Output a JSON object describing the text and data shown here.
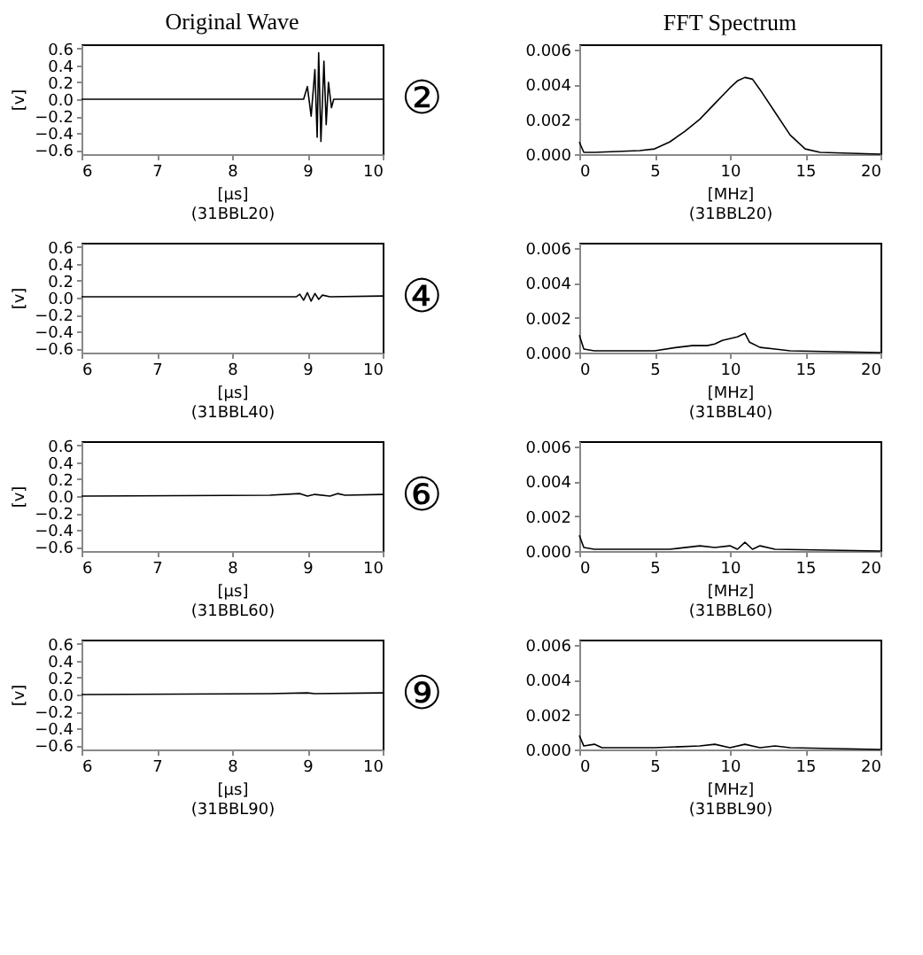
{
  "chart_data": [
    {
      "type": "line",
      "title": "Original Wave",
      "xlabel": "[μs]",
      "ylabel": "[v]",
      "annotations": [
        "(31BBL20)",
        "②"
      ],
      "xlim": [
        6,
        10
      ],
      "ylim": [
        -0.65,
        0.65
      ],
      "xticks": [
        6,
        7,
        8,
        9,
        10
      ],
      "yticks": [
        -0.6,
        -0.4,
        -0.2,
        {
          "value": 0,
          "label": "0.0"
        },
        0.2,
        0.4,
        0.6
      ],
      "grid": false,
      "legend": false,
      "line_style": "solid",
      "x": [
        6,
        8.95,
        9.0,
        9.05,
        9.1,
        9.13,
        9.15,
        9.18,
        9.22,
        9.25,
        9.28,
        9.32,
        9.35,
        10
      ],
      "series": [
        {
          "color": "#000000",
          "values": [
            0,
            0,
            0.15,
            -0.2,
            0.35,
            -0.45,
            0.55,
            -0.5,
            0.45,
            -0.3,
            0.2,
            -0.1,
            0,
            0
          ]
        }
      ]
    },
    {
      "type": "line",
      "title": "FFT Spectrum",
      "xlabel": "[MHz]",
      "annotations": [
        "(31BBL20)"
      ],
      "xlim": [
        0,
        20
      ],
      "ylim": [
        0,
        0.0063
      ],
      "xticks": [
        0,
        5,
        10,
        15,
        20
      ],
      "yticks": [
        {
          "value": 0,
          "label": "0.000"
        },
        {
          "value": 0.002,
          "label": "0.002"
        },
        {
          "value": 0.004,
          "label": "0.004"
        },
        {
          "value": 0.006,
          "label": "0.006"
        }
      ],
      "grid": false,
      "legend": false,
      "line_style": "solid",
      "x": [
        0,
        0.3,
        1,
        4,
        5,
        6,
        7,
        8,
        9,
        10,
        10.5,
        11,
        11.5,
        12,
        13,
        14,
        15,
        16,
        20
      ],
      "series": [
        {
          "color": "#000000",
          "values": [
            0.0007,
            0.0001,
            0.0001,
            0.0002,
            0.0003,
            0.0007,
            0.0013,
            0.002,
            0.0029,
            0.0038,
            0.0042,
            0.0044,
            0.0043,
            0.0037,
            0.0024,
            0.0011,
            0.0003,
            0.0001,
            0
          ]
        }
      ]
    },
    {
      "type": "line",
      "xlabel": "[μs]",
      "ylabel": "[v]",
      "annotations": [
        "(31BBL40)",
        "④"
      ],
      "xlim": [
        6,
        10
      ],
      "ylim": [
        -0.65,
        0.65
      ],
      "xticks": [
        6,
        7,
        8,
        9,
        10
      ],
      "yticks": [
        -0.6,
        -0.4,
        -0.2,
        {
          "value": 0,
          "label": "0.0"
        },
        0.2,
        0.4,
        0.6
      ],
      "grid": false,
      "legend": false,
      "line_style": "solid",
      "x": [
        6,
        8.85,
        8.9,
        8.95,
        9.0,
        9.05,
        9.1,
        9.15,
        9.2,
        9.3,
        10
      ],
      "series": [
        {
          "color": "#000000",
          "values": [
            0.01,
            0.01,
            0.04,
            -0.03,
            0.06,
            -0.04,
            0.05,
            -0.02,
            0.03,
            0.01,
            0.02
          ]
        }
      ]
    },
    {
      "type": "line",
      "xlabel": "[MHz]",
      "annotations": [
        "(31BBL40)"
      ],
      "xlim": [
        0,
        20
      ],
      "ylim": [
        0,
        0.0063
      ],
      "xticks": [
        0,
        5,
        10,
        15,
        20
      ],
      "yticks": [
        {
          "value": 0,
          "label": "0.000"
        },
        {
          "value": 0.002,
          "label": "0.002"
        },
        {
          "value": 0.004,
          "label": "0.004"
        },
        {
          "value": 0.006,
          "label": "0.006"
        }
      ],
      "grid": false,
      "legend": false,
      "line_style": "solid",
      "x": [
        0,
        0.3,
        1,
        5,
        6.5,
        7.5,
        8.5,
        9,
        9.5,
        10,
        10.5,
        11,
        11.3,
        12,
        13,
        14,
        20
      ],
      "series": [
        {
          "color": "#000000",
          "values": [
            0.001,
            0.0002,
            0.0001,
            0.0001,
            0.0003,
            0.0004,
            0.0004,
            0.0005,
            0.0007,
            0.0008,
            0.0009,
            0.0011,
            0.0006,
            0.0003,
            0.0002,
            0.0001,
            0
          ]
        }
      ]
    },
    {
      "type": "line",
      "xlabel": "[μs]",
      "ylabel": "[v]",
      "annotations": [
        "(31BBL60)",
        "⑥"
      ],
      "xlim": [
        6,
        10
      ],
      "ylim": [
        -0.65,
        0.65
      ],
      "xticks": [
        6,
        7,
        8,
        9,
        10
      ],
      "yticks": [
        -0.6,
        -0.4,
        -0.2,
        {
          "value": 0,
          "label": "0.0"
        },
        0.2,
        0.4,
        0.6
      ],
      "grid": false,
      "legend": false,
      "line_style": "solid",
      "x": [
        6,
        8.5,
        8.9,
        9.0,
        9.1,
        9.3,
        9.4,
        9.5,
        10
      ],
      "series": [
        {
          "color": "#000000",
          "values": [
            0,
            0.01,
            0.03,
            0,
            0.02,
            0,
            0.03,
            0.01,
            0.02
          ]
        }
      ]
    },
    {
      "type": "line",
      "xlabel": "[MHz]",
      "annotations": [
        "(31BBL60)"
      ],
      "xlim": [
        0,
        20
      ],
      "ylim": [
        0,
        0.0063
      ],
      "xticks": [
        0,
        5,
        10,
        15,
        20
      ],
      "yticks": [
        {
          "value": 0,
          "label": "0.000"
        },
        {
          "value": 0.002,
          "label": "0.002"
        },
        {
          "value": 0.004,
          "label": "0.004"
        },
        {
          "value": 0.006,
          "label": "0.006"
        }
      ],
      "grid": false,
      "legend": false,
      "line_style": "solid",
      "x": [
        0,
        0.3,
        1,
        6,
        8,
        9,
        10,
        10.5,
        11,
        11.5,
        12,
        13,
        20
      ],
      "series": [
        {
          "color": "#000000",
          "values": [
            0.0009,
            0.0002,
            0.0001,
            0.0001,
            0.0003,
            0.0002,
            0.0003,
            0.0001,
            0.0005,
            0.0001,
            0.0003,
            0.0001,
            0
          ]
        }
      ]
    },
    {
      "type": "line",
      "xlabel": "[μs]",
      "ylabel": "[v]",
      "annotations": [
        "(31BBL90)",
        "⑨"
      ],
      "xlim": [
        6,
        10
      ],
      "ylim": [
        -0.65,
        0.65
      ],
      "xticks": [
        6,
        7,
        8,
        9,
        10
      ],
      "yticks": [
        -0.6,
        -0.4,
        -0.2,
        {
          "value": 0,
          "label": "0.0"
        },
        0.2,
        0.4,
        0.6
      ],
      "grid": false,
      "legend": false,
      "line_style": "solid",
      "x": [
        6,
        8.5,
        9.0,
        9.1,
        10
      ],
      "series": [
        {
          "color": "#000000",
          "values": [
            0,
            0.01,
            0.02,
            0.01,
            0.02
          ]
        }
      ]
    },
    {
      "type": "line",
      "xlabel": "[MHz]",
      "annotations": [
        "(31BBL90)"
      ],
      "xlim": [
        0,
        20
      ],
      "ylim": [
        0,
        0.0063
      ],
      "xticks": [
        0,
        5,
        10,
        15,
        20
      ],
      "yticks": [
        {
          "value": 0,
          "label": "0.000"
        },
        {
          "value": 0.002,
          "label": "0.002"
        },
        {
          "value": 0.004,
          "label": "0.004"
        },
        {
          "value": 0.006,
          "label": "0.006"
        }
      ],
      "grid": false,
      "legend": false,
      "line_style": "solid",
      "x": [
        0,
        0.3,
        1,
        1.5,
        5,
        8,
        9,
        10,
        11,
        12,
        13,
        14,
        20
      ],
      "series": [
        {
          "color": "#000000",
          "values": [
            0.0008,
            0.0002,
            0.0003,
            0.0001,
            0.0001,
            0.0002,
            0.0003,
            0.0001,
            0.0003,
            0.0001,
            0.0002,
            0.0001,
            0
          ]
        }
      ]
    }
  ]
}
